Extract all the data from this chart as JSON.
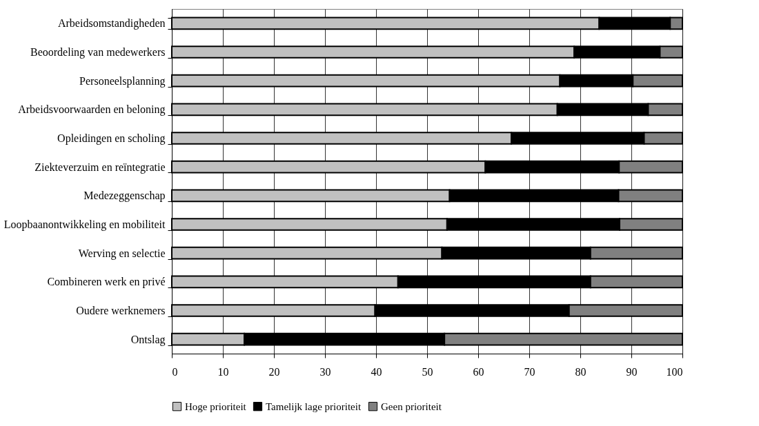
{
  "chart_data": {
    "type": "bar",
    "orientation": "horizontal",
    "stacked": true,
    "categories": [
      "Arbeidsomstandigheden",
      "Beoordeling van medewerkers",
      "Personeelsplanning ",
      "Arbeidsvoorwaarden en beloning",
      "Opleidingen en scholing",
      "Ziekteverzuim en reïntegratie",
      "Medezeggenschap",
      "Loopbaanontwikkeling en mobiliteit",
      "Werving en selectie",
      "Combineren werk en privé",
      "Oudere werknemers",
      "Ontslag"
    ],
    "series": [
      {
        "name": "Hoge prioriteit",
        "color": "#c0c0c0",
        "values": [
          83.7,
          78.8,
          76.0,
          75.5,
          66.5,
          61.4,
          54.4,
          53.9,
          52.9,
          44.3,
          39.8,
          14.2
        ]
      },
      {
        "name": "Tamelijk lage prioriteit",
        "color": "#000000",
        "values": [
          13.9,
          16.8,
          14.3,
          17.8,
          26.0,
          26.2,
          33.1,
          33.8,
          29.1,
          37.7,
          38.0,
          39.2
        ]
      },
      {
        "name": "Geen prioriteit",
        "color": "#808080",
        "values": [
          2.4,
          4.4,
          9.7,
          6.7,
          7.5,
          12.4,
          12.5,
          12.3,
          18.0,
          18.0,
          22.2,
          46.6
        ]
      }
    ],
    "xlim": [
      0,
      100
    ],
    "xticks": [
      0,
      10,
      20,
      30,
      40,
      50,
      60,
      70,
      80,
      90,
      100
    ],
    "grid": "x",
    "legend": "bottom"
  }
}
